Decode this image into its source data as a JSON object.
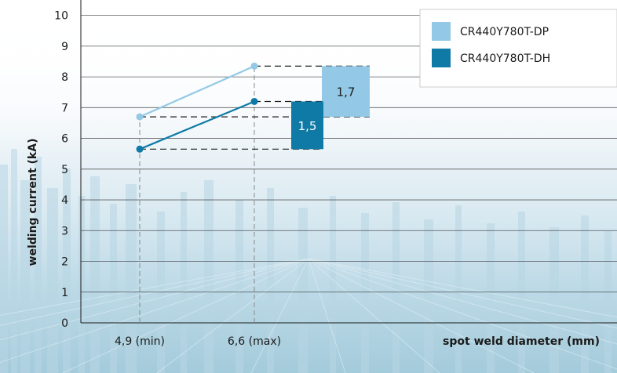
{
  "chart_data": {
    "type": "line",
    "xlabel": "spot weld diameter (mm)",
    "ylabel": "welding current (kA)",
    "ylim": [
      0,
      10.5
    ],
    "yticks": [
      "0",
      "1",
      "2",
      "3",
      "4",
      "5",
      "6",
      "7",
      "8",
      "9",
      "10"
    ],
    "x": [
      "4,9 (min)",
      "6,6 (max)"
    ],
    "x_values": [
      4.9,
      6.6
    ],
    "grid": true,
    "legend_position": "top-right",
    "series": [
      {
        "name": "CR440Y780T-DP",
        "values": [
          6.7,
          8.35
        ],
        "color": "#93c9e6"
      },
      {
        "name": "CR440Y780T-DH",
        "values": [
          5.65,
          7.2
        ],
        "color": "#0f7aa6"
      }
    ],
    "range_boxes": [
      {
        "series": "CR440Y780T-DP",
        "label": "1,7",
        "low": 6.7,
        "high": 8.35,
        "color": "#93c9e6"
      },
      {
        "series": "CR440Y780T-DH",
        "label": "1,5",
        "low": 5.65,
        "high": 7.2,
        "color": "#0f7aa6"
      }
    ]
  }
}
